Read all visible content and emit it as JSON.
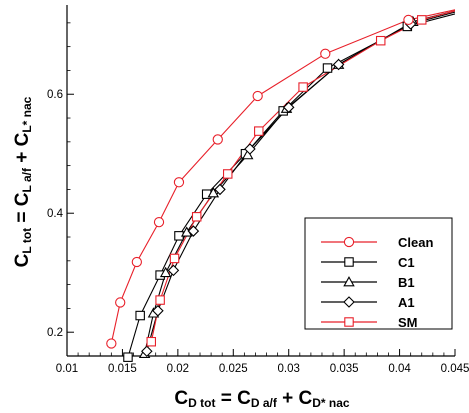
{
  "chart_data": {
    "type": "line",
    "xlabel": {
      "main": "C",
      "sub1": "D tot",
      "mid": " = C",
      "sub2": "D a/f",
      "mid2": " + C",
      "sub3": "D* nac"
    },
    "ylabel": {
      "main": "C",
      "sub1": "L tot",
      "mid": " = C",
      "sub2": "L a/f",
      "mid2": " + C",
      "sub3": "L* nac"
    },
    "xlim": [
      0.01,
      0.045
    ],
    "ylim": [
      0.16,
      0.75
    ],
    "xticks": [
      0.01,
      0.015,
      0.02,
      0.025,
      0.03,
      0.035,
      0.04,
      0.045
    ],
    "xtick_labels": [
      "0.01",
      "0.015",
      "0.02",
      "0.025",
      "0.03",
      "0.035",
      "0.04",
      "0.045"
    ],
    "yticks": [
      0.2,
      0.4,
      0.6
    ],
    "ytick_labels": [
      "0.2",
      "0.4",
      "0.6"
    ],
    "grid": false,
    "legend_position": "bottom-right",
    "series": [
      {
        "name": "Clean",
        "color": "#e8202a",
        "marker": "circle",
        "x": [
          0.014,
          0.0148,
          0.0163,
          0.0183,
          0.0201,
          0.0236,
          0.0272,
          0.0333,
          0.0408
        ],
        "y": [
          0.181,
          0.25,
          0.318,
          0.385,
          0.452,
          0.524,
          0.597,
          0.668,
          0.725
        ]
      },
      {
        "name": "C1",
        "color": "#000000",
        "marker": "square",
        "x": [
          0.0155,
          0.0166,
          0.0184,
          0.0201,
          0.0226,
          0.0261,
          0.0295,
          0.0335,
          0.0407
        ],
        "y": [
          0.158,
          0.228,
          0.296,
          0.362,
          0.432,
          0.5,
          0.572,
          0.644,
          0.714
        ]
      },
      {
        "name": "B1",
        "color": "#000000",
        "marker": "triangle",
        "x": [
          0.017,
          0.0178,
          0.0189,
          0.0208,
          0.0232,
          0.0263,
          0.0298,
          0.0345,
          0.0412
        ],
        "y": [
          0.164,
          0.232,
          0.3,
          0.368,
          0.434,
          0.498,
          0.576,
          0.65,
          0.722
        ]
      },
      {
        "name": "A1",
        "color": "#000000",
        "marker": "diamond",
        "x": [
          0.0172,
          0.0182,
          0.0196,
          0.0214,
          0.0238,
          0.0265,
          0.03,
          0.0345,
          0.041
        ],
        "y": [
          0.168,
          0.236,
          0.304,
          0.37,
          0.44,
          0.508,
          0.578,
          0.65,
          0.718
        ]
      },
      {
        "name": "SM",
        "color": "#e8202a",
        "marker": "square",
        "x": [
          0.0176,
          0.0184,
          0.0197,
          0.0217,
          0.0245,
          0.0273,
          0.0313,
          0.0383,
          0.042
        ],
        "y": [
          0.184,
          0.254,
          0.324,
          0.394,
          0.466,
          0.538,
          0.612,
          0.69,
          0.725
        ]
      }
    ],
    "curves": [
      {
        "name": "Clean",
        "x": [
          0.014,
          0.0148,
          0.0163,
          0.0183,
          0.0201,
          0.0236,
          0.0272,
          0.0333,
          0.0408,
          0.045
        ],
        "y": [
          0.181,
          0.25,
          0.318,
          0.385,
          0.452,
          0.524,
          0.597,
          0.668,
          0.725,
          0.742
        ]
      },
      {
        "name": "C1",
        "x": [
          0.0155,
          0.0166,
          0.0184,
          0.0201,
          0.0226,
          0.0261,
          0.0295,
          0.0335,
          0.0407,
          0.045
        ],
        "y": [
          0.158,
          0.228,
          0.296,
          0.362,
          0.432,
          0.5,
          0.572,
          0.644,
          0.714,
          0.735
        ]
      },
      {
        "name": "B1",
        "x": [
          0.017,
          0.0178,
          0.0189,
          0.0208,
          0.0232,
          0.0263,
          0.0298,
          0.0345,
          0.0412,
          0.045
        ],
        "y": [
          0.164,
          0.232,
          0.3,
          0.368,
          0.434,
          0.498,
          0.576,
          0.65,
          0.722,
          0.74
        ]
      },
      {
        "name": "A1",
        "x": [
          0.0172,
          0.0182,
          0.0196,
          0.0214,
          0.0238,
          0.0265,
          0.03,
          0.0345,
          0.041,
          0.045
        ],
        "y": [
          0.168,
          0.236,
          0.304,
          0.37,
          0.44,
          0.508,
          0.578,
          0.65,
          0.718,
          0.738
        ]
      },
      {
        "name": "SM",
        "x": [
          0.0176,
          0.0184,
          0.0197,
          0.0217,
          0.0245,
          0.0273,
          0.0313,
          0.0383,
          0.042,
          0.045
        ],
        "y": [
          0.184,
          0.254,
          0.324,
          0.394,
          0.466,
          0.538,
          0.612,
          0.69,
          0.725,
          0.74
        ]
      }
    ]
  }
}
